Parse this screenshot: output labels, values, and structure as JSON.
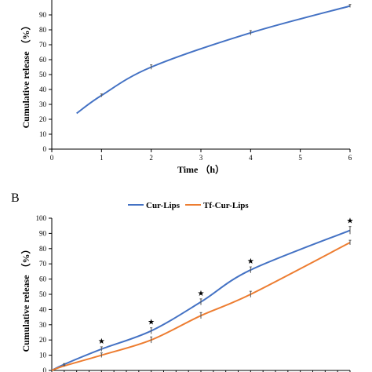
{
  "chart_data": [
    {
      "type": "line",
      "panel": "",
      "title": "",
      "xlabel": "Time （h）",
      "ylabel": "Cumulative release （%）",
      "xlim": [
        0,
        6
      ],
      "ylim": [
        0,
        100
      ],
      "x_ticks": [
        "0",
        "1",
        "2",
        "3",
        "4",
        "5",
        "6"
      ],
      "y_ticks": [
        "0",
        "10",
        "20",
        "30",
        "40",
        "50",
        "60",
        "70",
        "80",
        "90"
      ],
      "grid": false,
      "series": [
        {
          "name": "",
          "color": "#4472c4",
          "x": [
            0.5,
            1,
            2,
            4,
            6
          ],
          "y": [
            24,
            36,
            55,
            78,
            96
          ],
          "error": [
            0,
            1,
            1.5,
            1.5,
            1
          ]
        }
      ]
    },
    {
      "type": "line",
      "panel": "B",
      "title": "",
      "xlabel": "",
      "ylabel": "Cumulative release （%）",
      "xlim": [
        0,
        24
      ],
      "ylim": [
        0,
        100
      ],
      "x_ticks": [
        "0",
        "",
        "",
        "",
        "",
        "",
        "",
        "",
        "",
        "",
        "",
        "",
        "",
        "",
        "",
        "",
        "",
        "",
        "",
        "",
        "",
        "",
        "",
        "",
        ""
      ],
      "y_ticks": [
        "0",
        "10",
        "20",
        "30",
        "40",
        "50",
        "60",
        "70",
        "80",
        "90",
        "100"
      ],
      "legend": "top",
      "grid": false,
      "series": [
        {
          "name": "Cur-Lips",
          "color": "#4472c4",
          "x": [
            0,
            1,
            4,
            8,
            12,
            16,
            24
          ],
          "y": [
            0,
            4,
            14,
            26,
            45,
            66,
            92
          ],
          "error": [
            0,
            0.5,
            1.5,
            2,
            2,
            2,
            2.5
          ]
        },
        {
          "name": "Tf-Cur-Lips",
          "color": "#ed7d31",
          "x": [
            0,
            1,
            4,
            8,
            12,
            16,
            24
          ],
          "y": [
            0,
            3,
            10,
            20,
            36,
            50,
            84
          ],
          "error": [
            0,
            0.5,
            1.5,
            2,
            2,
            2,
            1.5
          ]
        }
      ],
      "significance_marker": "★",
      "significance_x": [
        4,
        8,
        12,
        16,
        24
      ]
    }
  ]
}
